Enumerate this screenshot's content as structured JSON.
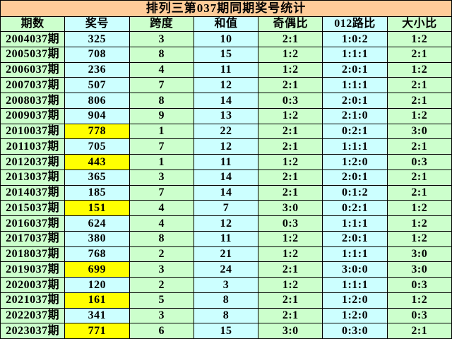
{
  "title": "排列三第037期同期奖号统计",
  "colors": {
    "title_bg": "#FFCC99",
    "cell_green": "#CCFFCC",
    "cell_cyan": "#CCFFFF",
    "cell_highlight": "#FFFF00",
    "border": "#000000",
    "text": "#000000"
  },
  "chart_data": {
    "type": "table",
    "title": "排列三第037期同期奖号统计",
    "columns": [
      "期数",
      "奖号",
      "跨度",
      "和值",
      "奇偶比",
      "012路比",
      "大小比"
    ],
    "column_keys": [
      "period",
      "number",
      "span",
      "sum",
      "odd_even",
      "road_012",
      "big_small"
    ],
    "highlighted_numbers": [
      "778",
      "443",
      "151",
      "699",
      "161",
      "771"
    ],
    "rows": [
      {
        "period": "2004037期",
        "number": "325",
        "highlight": false,
        "span": "3",
        "sum": "10",
        "odd_even": "2:1",
        "road_012": "1:0:2",
        "big_small": "1:2"
      },
      {
        "period": "2005037期",
        "number": "708",
        "highlight": false,
        "span": "8",
        "sum": "15",
        "odd_even": "1:2",
        "road_012": "1:1:1",
        "big_small": "2:1"
      },
      {
        "period": "2006037期",
        "number": "236",
        "highlight": false,
        "span": "4",
        "sum": "11",
        "odd_even": "1:2",
        "road_012": "2:0:1",
        "big_small": "1:2"
      },
      {
        "period": "2007037期",
        "number": "507",
        "highlight": false,
        "span": "7",
        "sum": "12",
        "odd_even": "2:1",
        "road_012": "1:1:1",
        "big_small": "2:1"
      },
      {
        "period": "2008037期",
        "number": "806",
        "highlight": false,
        "span": "8",
        "sum": "14",
        "odd_even": "0:3",
        "road_012": "2:0:1",
        "big_small": "2:1"
      },
      {
        "period": "2009037期",
        "number": "904",
        "highlight": false,
        "span": "9",
        "sum": "13",
        "odd_even": "1:2",
        "road_012": "2:1:0",
        "big_small": "1:2"
      },
      {
        "period": "2010037期",
        "number": "778",
        "highlight": true,
        "span": "1",
        "sum": "22",
        "odd_even": "2:1",
        "road_012": "0:2:1",
        "big_small": "3:0"
      },
      {
        "period": "2011037期",
        "number": "705",
        "highlight": false,
        "span": "7",
        "sum": "12",
        "odd_even": "2:1",
        "road_012": "1:1:1",
        "big_small": "2:1"
      },
      {
        "period": "2012037期",
        "number": "443",
        "highlight": true,
        "span": "1",
        "sum": "11",
        "odd_even": "1:2",
        "road_012": "1:2:0",
        "big_small": "0:3"
      },
      {
        "period": "2013037期",
        "number": "365",
        "highlight": false,
        "span": "3",
        "sum": "14",
        "odd_even": "2:1",
        "road_012": "2:0:1",
        "big_small": "2:1"
      },
      {
        "period": "2014037期",
        "number": "185",
        "highlight": false,
        "span": "7",
        "sum": "14",
        "odd_even": "2:1",
        "road_012": "0:1:2",
        "big_small": "2:1"
      },
      {
        "period": "2015037期",
        "number": "151",
        "highlight": true,
        "span": "4",
        "sum": "7",
        "odd_even": "3:0",
        "road_012": "0:2:1",
        "big_small": "1:2"
      },
      {
        "period": "2016037期",
        "number": "624",
        "highlight": false,
        "span": "4",
        "sum": "12",
        "odd_even": "0:3",
        "road_012": "1:1:1",
        "big_small": "1:2"
      },
      {
        "period": "2017037期",
        "number": "380",
        "highlight": false,
        "span": "8",
        "sum": "11",
        "odd_even": "1:2",
        "road_012": "2:0:1",
        "big_small": "1:2"
      },
      {
        "period": "2018037期",
        "number": "768",
        "highlight": false,
        "span": "2",
        "sum": "21",
        "odd_even": "1:2",
        "road_012": "1:1:1",
        "big_small": "3:0"
      },
      {
        "period": "2019037期",
        "number": "699",
        "highlight": true,
        "span": "3",
        "sum": "24",
        "odd_even": "2:1",
        "road_012": "3:0:0",
        "big_small": "3:0"
      },
      {
        "period": "2020037期",
        "number": "120",
        "highlight": false,
        "span": "2",
        "sum": "3",
        "odd_even": "1:2",
        "road_012": "1:1:1",
        "big_small": "0:3"
      },
      {
        "period": "2021037期",
        "number": "161",
        "highlight": true,
        "span": "5",
        "sum": "8",
        "odd_even": "2:1",
        "road_012": "1:2:0",
        "big_small": "1:2"
      },
      {
        "period": "2022037期",
        "number": "341",
        "highlight": false,
        "span": "3",
        "sum": "8",
        "odd_even": "2:1",
        "road_012": "1:2:0",
        "big_small": "0:3"
      },
      {
        "period": "2023037期",
        "number": "771",
        "highlight": true,
        "span": "6",
        "sum": "15",
        "odd_even": "3:0",
        "road_012": "0:3:0",
        "big_small": "2:1"
      }
    ]
  }
}
